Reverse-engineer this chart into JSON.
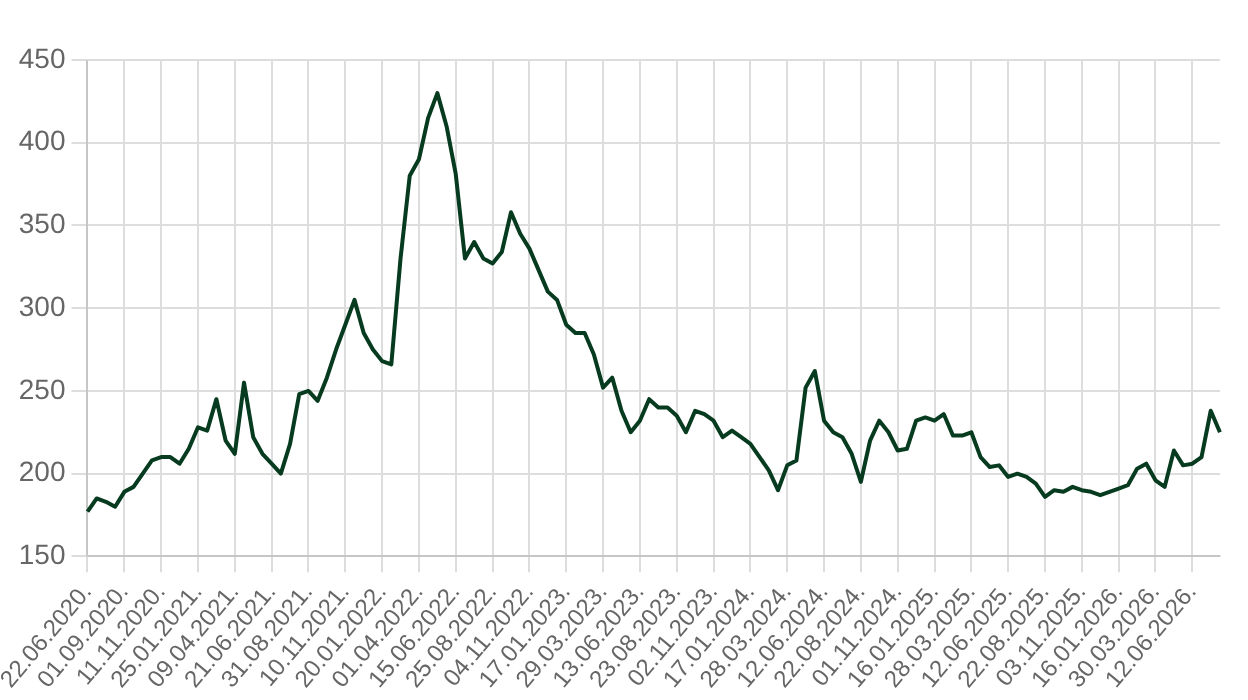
{
  "chart_data": {
    "type": "line",
    "categories": [
      "22.06.2020.",
      null,
      null,
      null,
      "01.09.2020.",
      null,
      null,
      null,
      "11.11.2020.",
      null,
      null,
      null,
      "25.01.2021.",
      null,
      null,
      null,
      "09.04.2021.",
      null,
      null,
      null,
      "21.06.2021.",
      null,
      null,
      null,
      "31.08.2021.",
      null,
      null,
      null,
      "10.11.2021.",
      null,
      null,
      null,
      "20.01.2022.",
      null,
      null,
      null,
      "01.04.2022.",
      null,
      null,
      null,
      "15.06.2022.",
      null,
      null,
      null,
      "25.08.2022.",
      null,
      null,
      null,
      "04.11.2022.",
      null,
      null,
      null,
      "17.01.2023.",
      null,
      null,
      null,
      "29.03.2023.",
      null,
      null,
      null,
      "13.06.2023.",
      null,
      null,
      null,
      "23.08.2023.",
      null,
      null,
      null,
      "02.11.2023.",
      null,
      null,
      null,
      "17.01.2024.",
      null,
      null,
      null,
      "28.03.2024.",
      null,
      null,
      null,
      "12.06.2024.",
      null,
      null,
      null,
      "22.08.2024.",
      null,
      null,
      null,
      "01.11.2024.",
      null,
      null,
      null,
      "16.01.2025.",
      null,
      null,
      null,
      "28.03.2025.",
      null,
      null,
      null,
      "12.06.2025.",
      null,
      null,
      null,
      "22.08.2025.",
      null,
      null,
      null,
      "03.11.2025.",
      null,
      null,
      null,
      "16.01.2026.",
      null,
      null,
      null,
      "30.03.2026.",
      null,
      null,
      null,
      "12.06.2026.",
      null,
      null,
      null
    ],
    "series": [
      {
        "color": "#073b1f",
        "values": [
          177,
          185,
          183,
          180,
          189,
          192,
          200,
          208,
          210,
          210,
          206,
          215,
          228,
          226,
          245,
          220,
          212,
          255,
          222,
          212,
          206,
          200,
          218,
          248,
          250,
          244,
          258,
          275,
          290,
          305,
          285,
          275,
          268,
          266,
          330,
          380,
          390,
          415,
          430,
          410,
          381,
          330,
          340,
          330,
          327,
          334,
          358,
          345,
          336,
          323,
          310,
          305,
          290,
          285,
          285,
          272,
          252,
          258,
          238,
          225,
          232,
          245,
          240,
          240,
          235,
          225,
          238,
          236,
          232,
          222,
          226,
          222,
          218,
          210,
          202,
          190,
          205,
          208,
          252,
          262,
          232,
          225,
          222,
          212,
          195,
          220,
          232,
          225,
          214,
          215,
          232,
          234,
          232,
          236,
          223,
          223,
          225,
          210,
          204,
          205,
          198,
          200,
          198,
          194,
          186,
          190,
          189,
          192,
          190,
          189,
          187,
          189,
          191,
          193,
          203,
          206,
          196,
          192,
          214,
          205,
          206,
          210,
          238,
          225
        ]
      }
    ],
    "ylim": [
      150,
      450
    ],
    "yticks": [
      150,
      200,
      250,
      300,
      350,
      400,
      450
    ],
    "grid": true,
    "marker": "none",
    "line_style": "solid"
  }
}
